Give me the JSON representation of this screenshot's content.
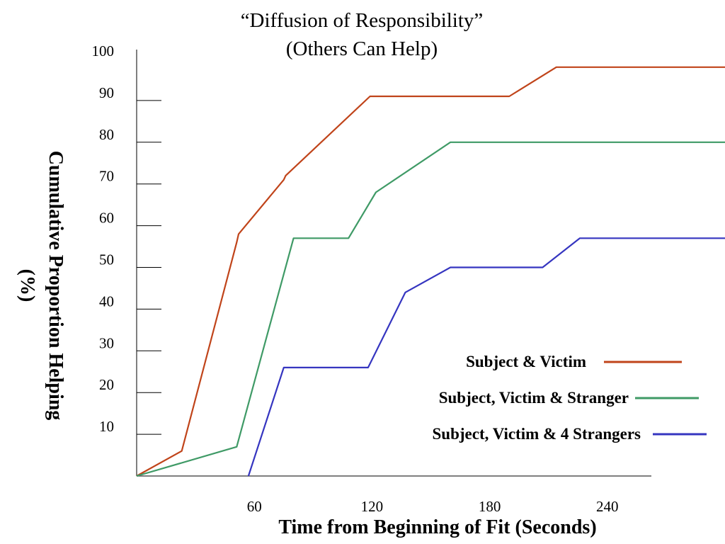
{
  "chart_data": {
    "type": "line",
    "title": [
      "“Diffusion of Responsibility”",
      "(Others Can Help)"
    ],
    "xlabel": "Time from Beginning of Fit (Seconds)",
    "ylabel": [
      "Cumulative Proportion Helping",
      "(%)"
    ],
    "xlim": [
      0,
      300
    ],
    "ylim": [
      0,
      100
    ],
    "xticks": [
      60,
      120,
      180,
      240
    ],
    "xtick_labels": [
      "60",
      "120",
      "180",
      "240"
    ],
    "yticks": [
      10,
      20,
      30,
      40,
      50,
      60,
      70,
      80,
      90,
      100
    ],
    "ytick_labels": [
      "10",
      "20",
      "30",
      "40",
      "50",
      "60",
      "70",
      "80",
      "90",
      "100"
    ],
    "grid": false,
    "legend_position": "bottom-right",
    "series": [
      {
        "name": "Subject & Victim",
        "color": "#c0441a",
        "points": [
          [
            0,
            0
          ],
          [
            23,
            6
          ],
          [
            51,
            56
          ],
          [
            52,
            58
          ],
          [
            75,
            71
          ],
          [
            76,
            72
          ],
          [
            119,
            91
          ],
          [
            190,
            91
          ],
          [
            214,
            98
          ],
          [
            300,
            98
          ]
        ]
      },
      {
        "name": "Subject, Victim & Stranger",
        "color": "#3f9a66",
        "points": [
          [
            0,
            0
          ],
          [
            51,
            7
          ],
          [
            80,
            57
          ],
          [
            108,
            57
          ],
          [
            122,
            68
          ],
          [
            160,
            80
          ],
          [
            300,
            80
          ]
        ]
      },
      {
        "name": "Subject, Victim & 4 Strangers",
        "color": "#3535c0",
        "points": [
          [
            57,
            0
          ],
          [
            75,
            26
          ],
          [
            118,
            26
          ],
          [
            137,
            44
          ],
          [
            160,
            50
          ],
          [
            207,
            50
          ],
          [
            226,
            57
          ],
          [
            300,
            57
          ]
        ]
      }
    ]
  }
}
